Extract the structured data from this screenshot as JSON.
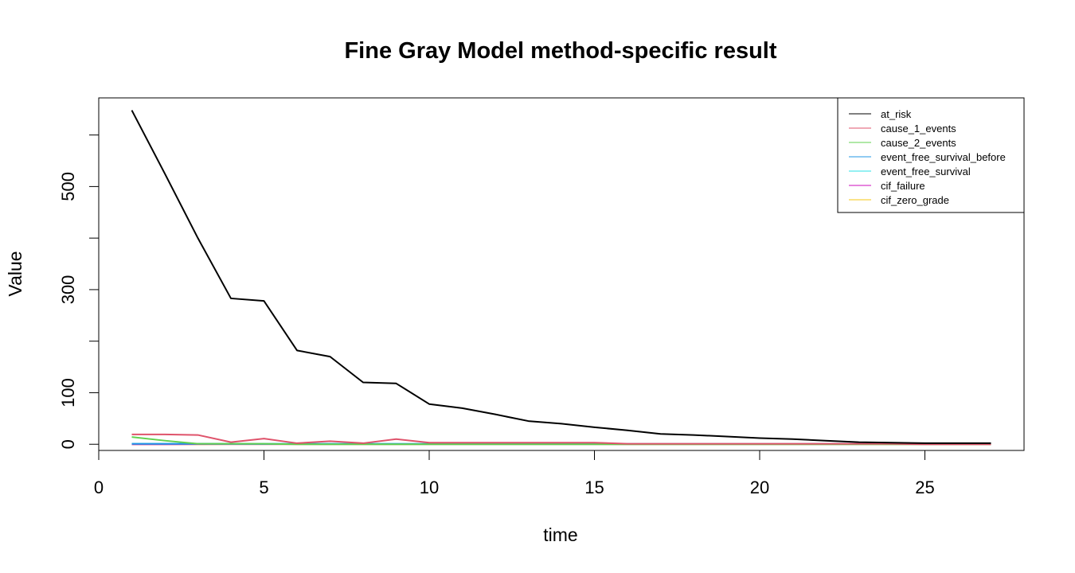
{
  "chart_data": {
    "type": "line",
    "title": "Fine Gray Model method-specific result",
    "xlabel": "time",
    "ylabel": "Value",
    "xlim": [
      0,
      28
    ],
    "ylim": [
      -12,
      672
    ],
    "x_ticks": [
      0,
      5,
      10,
      15,
      20,
      25
    ],
    "x_tick_labels": [
      "0",
      "5",
      "10",
      "15",
      "20",
      "25"
    ],
    "y_ticks": [
      0,
      100,
      200,
      300,
      400,
      500,
      600
    ],
    "y_tick_labels": [
      "0",
      "100",
      "",
      "300",
      "",
      "500",
      ""
    ],
    "grid": false,
    "legend_position": "top-right",
    "series": [
      {
        "name": "at_risk",
        "color": "#000000",
        "x": [
          1,
          2,
          3,
          4,
          5,
          6,
          7,
          8,
          9,
          10,
          11,
          12,
          13,
          14,
          15,
          16,
          17,
          18,
          19,
          20,
          21,
          22,
          23,
          24,
          25,
          26,
          27
        ],
        "y": [
          648,
          525,
          400,
          283,
          278,
          182,
          170,
          120,
          118,
          78,
          70,
          58,
          45,
          40,
          33,
          27,
          20,
          18,
          15,
          12,
          10,
          7,
          4,
          3,
          2,
          2,
          2
        ]
      },
      {
        "name": "cause_1_events",
        "color": "#DF536B",
        "x": [
          1,
          2,
          3,
          4,
          5,
          6,
          7,
          8,
          9,
          10,
          11,
          12,
          13,
          14,
          15,
          16,
          17,
          18,
          19,
          20,
          21,
          22,
          23,
          24,
          25,
          26,
          27
        ],
        "y": [
          19,
          19,
          18,
          4,
          11,
          2,
          6,
          2,
          10,
          3,
          3,
          3,
          3,
          3,
          3,
          1,
          1,
          1,
          1,
          1,
          1,
          1,
          1,
          1,
          0,
          0,
          0
        ]
      },
      {
        "name": "cause_2_events",
        "color": "#61D04F",
        "x": [
          1,
          2,
          3,
          4,
          5,
          6,
          7,
          8,
          9,
          10,
          11,
          12,
          13,
          14,
          15,
          16,
          17,
          18,
          19,
          20,
          21,
          22,
          23,
          24,
          25,
          26,
          27
        ],
        "y": [
          14,
          7,
          1,
          1,
          1,
          0,
          0,
          0,
          0,
          0,
          0,
          0,
          0,
          0,
          0,
          0,
          0,
          0,
          0,
          0,
          0,
          0,
          0,
          0,
          0,
          0,
          0
        ]
      },
      {
        "name": "event_free_survival_before",
        "color": "#2297E6",
        "x": [
          1,
          2,
          3,
          4,
          5,
          6,
          7,
          8,
          9,
          10,
          11,
          12,
          13,
          14,
          15,
          16,
          17,
          18,
          19,
          20,
          21,
          22,
          23,
          24,
          25,
          26,
          27
        ],
        "y": [
          1,
          0.95,
          0.9,
          0.85,
          0.8,
          0.75,
          0.72,
          0.7,
          0.67,
          0.65,
          0.63,
          0.61,
          0.6,
          0.58,
          0.57,
          0.56,
          0.55,
          0.55,
          0.54,
          0.54,
          0.53,
          0.53,
          0.53,
          0.52,
          0.52,
          0.52,
          0.52
        ]
      },
      {
        "name": "event_free_survival",
        "color": "#28E2E5",
        "x": [
          1,
          2,
          3,
          4,
          5,
          6,
          7,
          8,
          9,
          10,
          11,
          12,
          13,
          14,
          15,
          16,
          17,
          18,
          19,
          20,
          21,
          22,
          23,
          24,
          25,
          26,
          27
        ],
        "y": [
          0.95,
          0.9,
          0.85,
          0.8,
          0.75,
          0.72,
          0.7,
          0.67,
          0.65,
          0.63,
          0.61,
          0.6,
          0.58,
          0.57,
          0.56,
          0.55,
          0.55,
          0.54,
          0.54,
          0.53,
          0.53,
          0.53,
          0.52,
          0.52,
          0.52,
          0.52,
          0.52
        ]
      },
      {
        "name": "cif_failure",
        "color": "#CD0BBC",
        "x": [
          1,
          2,
          3,
          4,
          5,
          6,
          7,
          8,
          9,
          10,
          11,
          12,
          13,
          14,
          15,
          16,
          17,
          18,
          19,
          20,
          21,
          22,
          23,
          24,
          25,
          26,
          27
        ],
        "y": [
          0.03,
          0.06,
          0.09,
          0.1,
          0.12,
          0.13,
          0.14,
          0.15,
          0.16,
          0.17,
          0.17,
          0.18,
          0.18,
          0.19,
          0.19,
          0.19,
          0.2,
          0.2,
          0.2,
          0.2,
          0.2,
          0.2,
          0.2,
          0.21,
          0.21,
          0.21,
          0.21
        ]
      },
      {
        "name": "cif_zero_grade",
        "color": "#F5C710",
        "x": [
          1,
          2,
          3,
          4,
          5,
          6,
          7,
          8,
          9,
          10,
          11,
          12,
          13,
          14,
          15,
          16,
          17,
          18,
          19,
          20,
          21,
          22,
          23,
          24,
          25,
          26,
          27
        ],
        "y": [
          0.02,
          0.04,
          0.06,
          0.07,
          0.08,
          0.09,
          0.1,
          0.1,
          0.11,
          0.11,
          0.12,
          0.12,
          0.12,
          0.13,
          0.13,
          0.13,
          0.13,
          0.13,
          0.13,
          0.14,
          0.14,
          0.14,
          0.14,
          0.14,
          0.14,
          0.14,
          0.14
        ]
      }
    ]
  }
}
